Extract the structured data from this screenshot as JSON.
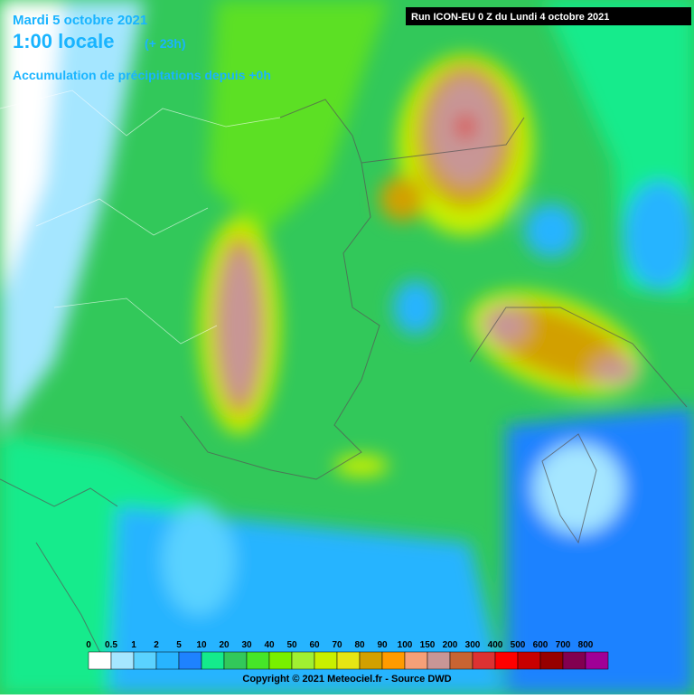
{
  "header": {
    "date": "Mardi 5 octobre 2021",
    "time": "1:00 locale",
    "offset": "(+ 23h)",
    "subtitle": "Accumulation de précipitations depuis +0h",
    "run": "Run ICON-EU 0 Z du Lundi 4 octobre 2021"
  },
  "legend": [
    {
      "label": "0",
      "color": "#ffffff"
    },
    {
      "label": "0.5",
      "color": "#a5e6ff"
    },
    {
      "label": "1",
      "color": "#5ad2ff"
    },
    {
      "label": "2",
      "color": "#28b4ff"
    },
    {
      "label": "5",
      "color": "#1e82ff"
    },
    {
      "label": "10",
      "color": "#14eb8c"
    },
    {
      "label": "20",
      "color": "#32c85a"
    },
    {
      "label": "30",
      "color": "#46e628"
    },
    {
      "label": "40",
      "color": "#78f000"
    },
    {
      "label": "50",
      "color": "#a0f032"
    },
    {
      "label": "60",
      "color": "#c8f000"
    },
    {
      "label": "70",
      "color": "#e6e614"
    },
    {
      "label": "80",
      "color": "#d2a000"
    },
    {
      "label": "90",
      "color": "#ff9b00"
    },
    {
      "label": "100",
      "color": "#f5a078"
    },
    {
      "label": "150",
      "color": "#c89696"
    },
    {
      "label": "200",
      "color": "#c86432"
    },
    {
      "label": "300",
      "color": "#dc3232"
    },
    {
      "label": "400",
      "color": "#ff0000"
    },
    {
      "label": "500",
      "color": "#c80000"
    },
    {
      "label": "600",
      "color": "#960000"
    },
    {
      "label": "700",
      "color": "#820050"
    },
    {
      "label": "800",
      "color": "#a00096"
    }
  ],
  "copyright": "Copyright © 2021 Meteociel.fr - Source DWD"
}
